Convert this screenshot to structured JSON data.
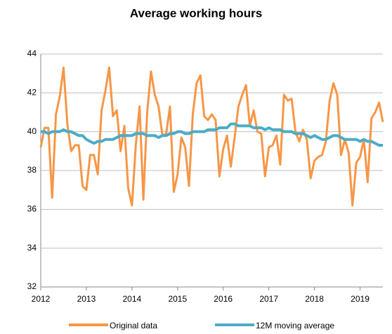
{
  "chart_data": {
    "type": "line",
    "title": "Average working hours",
    "x": [
      2012,
      2012.0833,
      2012.1667,
      2012.25,
      2012.3333,
      2012.4167,
      2012.5,
      2012.5833,
      2012.6667,
      2012.75,
      2012.8333,
      2012.9167,
      2013,
      2013.0833,
      2013.1667,
      2013.25,
      2013.3333,
      2013.4167,
      2013.5,
      2013.5833,
      2013.6667,
      2013.75,
      2013.8333,
      2013.9167,
      2014,
      2014.0833,
      2014.1667,
      2014.25,
      2014.3333,
      2014.4167,
      2014.5,
      2014.5833,
      2014.6667,
      2014.75,
      2014.8333,
      2014.9167,
      2015,
      2015.0833,
      2015.1667,
      2015.25,
      2015.3333,
      2015.4167,
      2015.5,
      2015.5833,
      2015.6667,
      2015.75,
      2015.8333,
      2015.9167,
      2016,
      2016.0833,
      2016.1667,
      2016.25,
      2016.3333,
      2016.4167,
      2016.5,
      2016.5833,
      2016.6667,
      2016.75,
      2016.8333,
      2016.9167,
      2017,
      2017.0833,
      2017.1667,
      2017.25,
      2017.3333,
      2017.4167,
      2017.5,
      2017.5833,
      2017.6667,
      2017.75,
      2017.8333,
      2017.9167,
      2018,
      2018.0833,
      2018.1667,
      2018.25,
      2018.3333,
      2018.4167,
      2018.5,
      2018.5833,
      2018.6667,
      2018.75,
      2018.8333,
      2018.9167,
      2019,
      2019.0833,
      2019.1667,
      2019.25,
      2019.3333,
      2019.4167,
      2019.5
    ],
    "series": [
      {
        "name": "Original data",
        "color": "#f79646",
        "values": [
          39.2,
          40.2,
          40.2,
          36.6,
          40.9,
          41.8,
          43.3,
          40.4,
          39.0,
          39.3,
          39.3,
          37.2,
          37.0,
          38.8,
          38.8,
          37.8,
          41.1,
          42.1,
          43.3,
          40.8,
          41.1,
          39.0,
          40.3,
          37.1,
          36.2,
          39.3,
          41.3,
          36.5,
          41.0,
          43.1,
          41.9,
          41.3,
          39.8,
          39.9,
          41.3,
          36.9,
          37.8,
          39.7,
          39.2,
          37.2,
          40.9,
          42.5,
          42.9,
          40.8,
          40.6,
          40.9,
          40.6,
          37.7,
          39.1,
          39.8,
          38.2,
          39.7,
          41.3,
          41.9,
          42.4,
          40.3,
          41.1,
          40.0,
          39.9,
          37.7,
          39.2,
          39.3,
          39.8,
          38.3,
          41.9,
          41.6,
          41.7,
          40.0,
          39.5,
          40.1,
          39.6,
          37.6,
          38.5,
          38.7,
          38.8,
          39.5,
          41.6,
          42.5,
          41.9,
          38.8,
          39.6,
          38.9,
          36.2,
          38.4,
          38.7,
          39.6,
          37.4,
          40.7,
          41.0,
          41.5,
          40.5
        ]
      },
      {
        "name": "12M moving average",
        "color": "#4bacc6",
        "values": [
          40.0,
          40.0,
          39.9,
          40.0,
          40.0,
          40.0,
          40.1,
          40.0,
          40.0,
          39.9,
          39.8,
          39.8,
          39.6,
          39.5,
          39.4,
          39.5,
          39.5,
          39.6,
          39.6,
          39.6,
          39.7,
          39.8,
          39.8,
          39.8,
          39.8,
          39.9,
          39.9,
          39.9,
          39.8,
          39.8,
          39.8,
          39.7,
          39.8,
          39.8,
          39.9,
          39.9,
          40.0,
          40.0,
          39.9,
          39.9,
          40.0,
          40.0,
          40.0,
          40.0,
          40.1,
          40.1,
          40.1,
          40.2,
          40.2,
          40.2,
          40.4,
          40.4,
          40.3,
          40.3,
          40.3,
          40.3,
          40.2,
          40.2,
          40.2,
          40.1,
          40.2,
          40.1,
          40.1,
          40.1,
          40.0,
          40.0,
          40.0,
          39.9,
          39.9,
          39.9,
          39.8,
          39.7,
          39.8,
          39.7,
          39.6,
          39.6,
          39.7,
          39.8,
          39.8,
          39.7,
          39.6,
          39.6,
          39.6,
          39.6,
          39.5,
          39.6,
          39.5,
          39.5,
          39.4,
          39.3,
          39.3
        ]
      }
    ],
    "xlim": [
      2012,
      2019.5
    ],
    "xticks": [
      2012,
      2013,
      2014,
      2015,
      2016,
      2017,
      2018,
      2019
    ],
    "ylim": [
      32,
      44
    ],
    "yticks": [
      32,
      34,
      36,
      38,
      40,
      42,
      44
    ],
    "grid": true,
    "legend": "bottom"
  }
}
